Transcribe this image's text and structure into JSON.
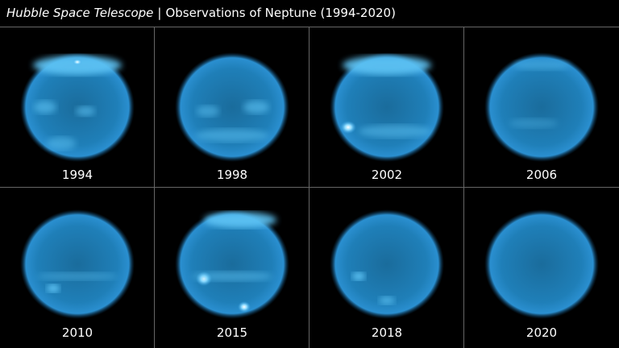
{
  "header": {
    "telescope": "Hubble Space Telescope",
    "separator": "|",
    "title": "Observations of Neptune (1994-2020)"
  },
  "panels": [
    {
      "label": "1994"
    },
    {
      "label": "1998"
    },
    {
      "label": "2002"
    },
    {
      "label": "2006"
    },
    {
      "label": "2010"
    },
    {
      "label": "2015"
    },
    {
      "label": "2018"
    },
    {
      "label": "2020"
    }
  ]
}
